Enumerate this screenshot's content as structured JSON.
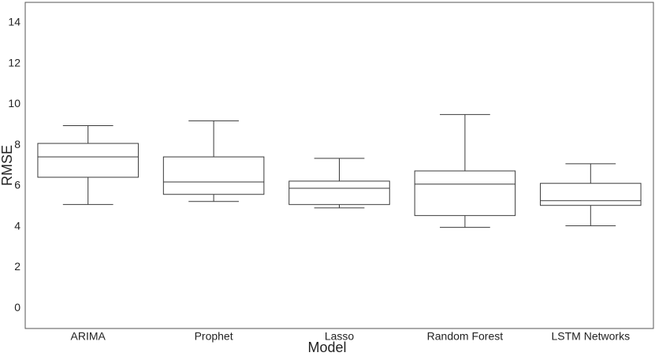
{
  "chart_data": {
    "type": "box",
    "xlabel": "Model",
    "ylabel": "RMSE",
    "categories": [
      "ARIMA",
      "Prophet",
      "Lasso",
      "Random Forest",
      "LSTM Networks"
    ],
    "boxes": [
      {
        "whislo": 5.08,
        "q1": 6.42,
        "med": 7.42,
        "q3": 8.08,
        "whishi": 8.95
      },
      {
        "whislo": 5.23,
        "q1": 5.58,
        "med": 6.19,
        "q3": 7.42,
        "whishi": 9.19
      },
      {
        "whislo": 4.92,
        "q1": 5.08,
        "med": 5.88,
        "q3": 6.23,
        "whishi": 7.35
      },
      {
        "whislo": 3.96,
        "q1": 4.54,
        "med": 6.08,
        "q3": 6.73,
        "whishi": 9.5
      },
      {
        "whislo": 4.04,
        "q1": 5.04,
        "med": 5.27,
        "q3": 6.12,
        "whishi": 7.08
      }
    ],
    "color": "#3a3a3a",
    "ylim": [
      -1,
      15
    ],
    "yticks": [
      0,
      2,
      4,
      6,
      8,
      10,
      12,
      14
    ],
    "grid": false
  }
}
